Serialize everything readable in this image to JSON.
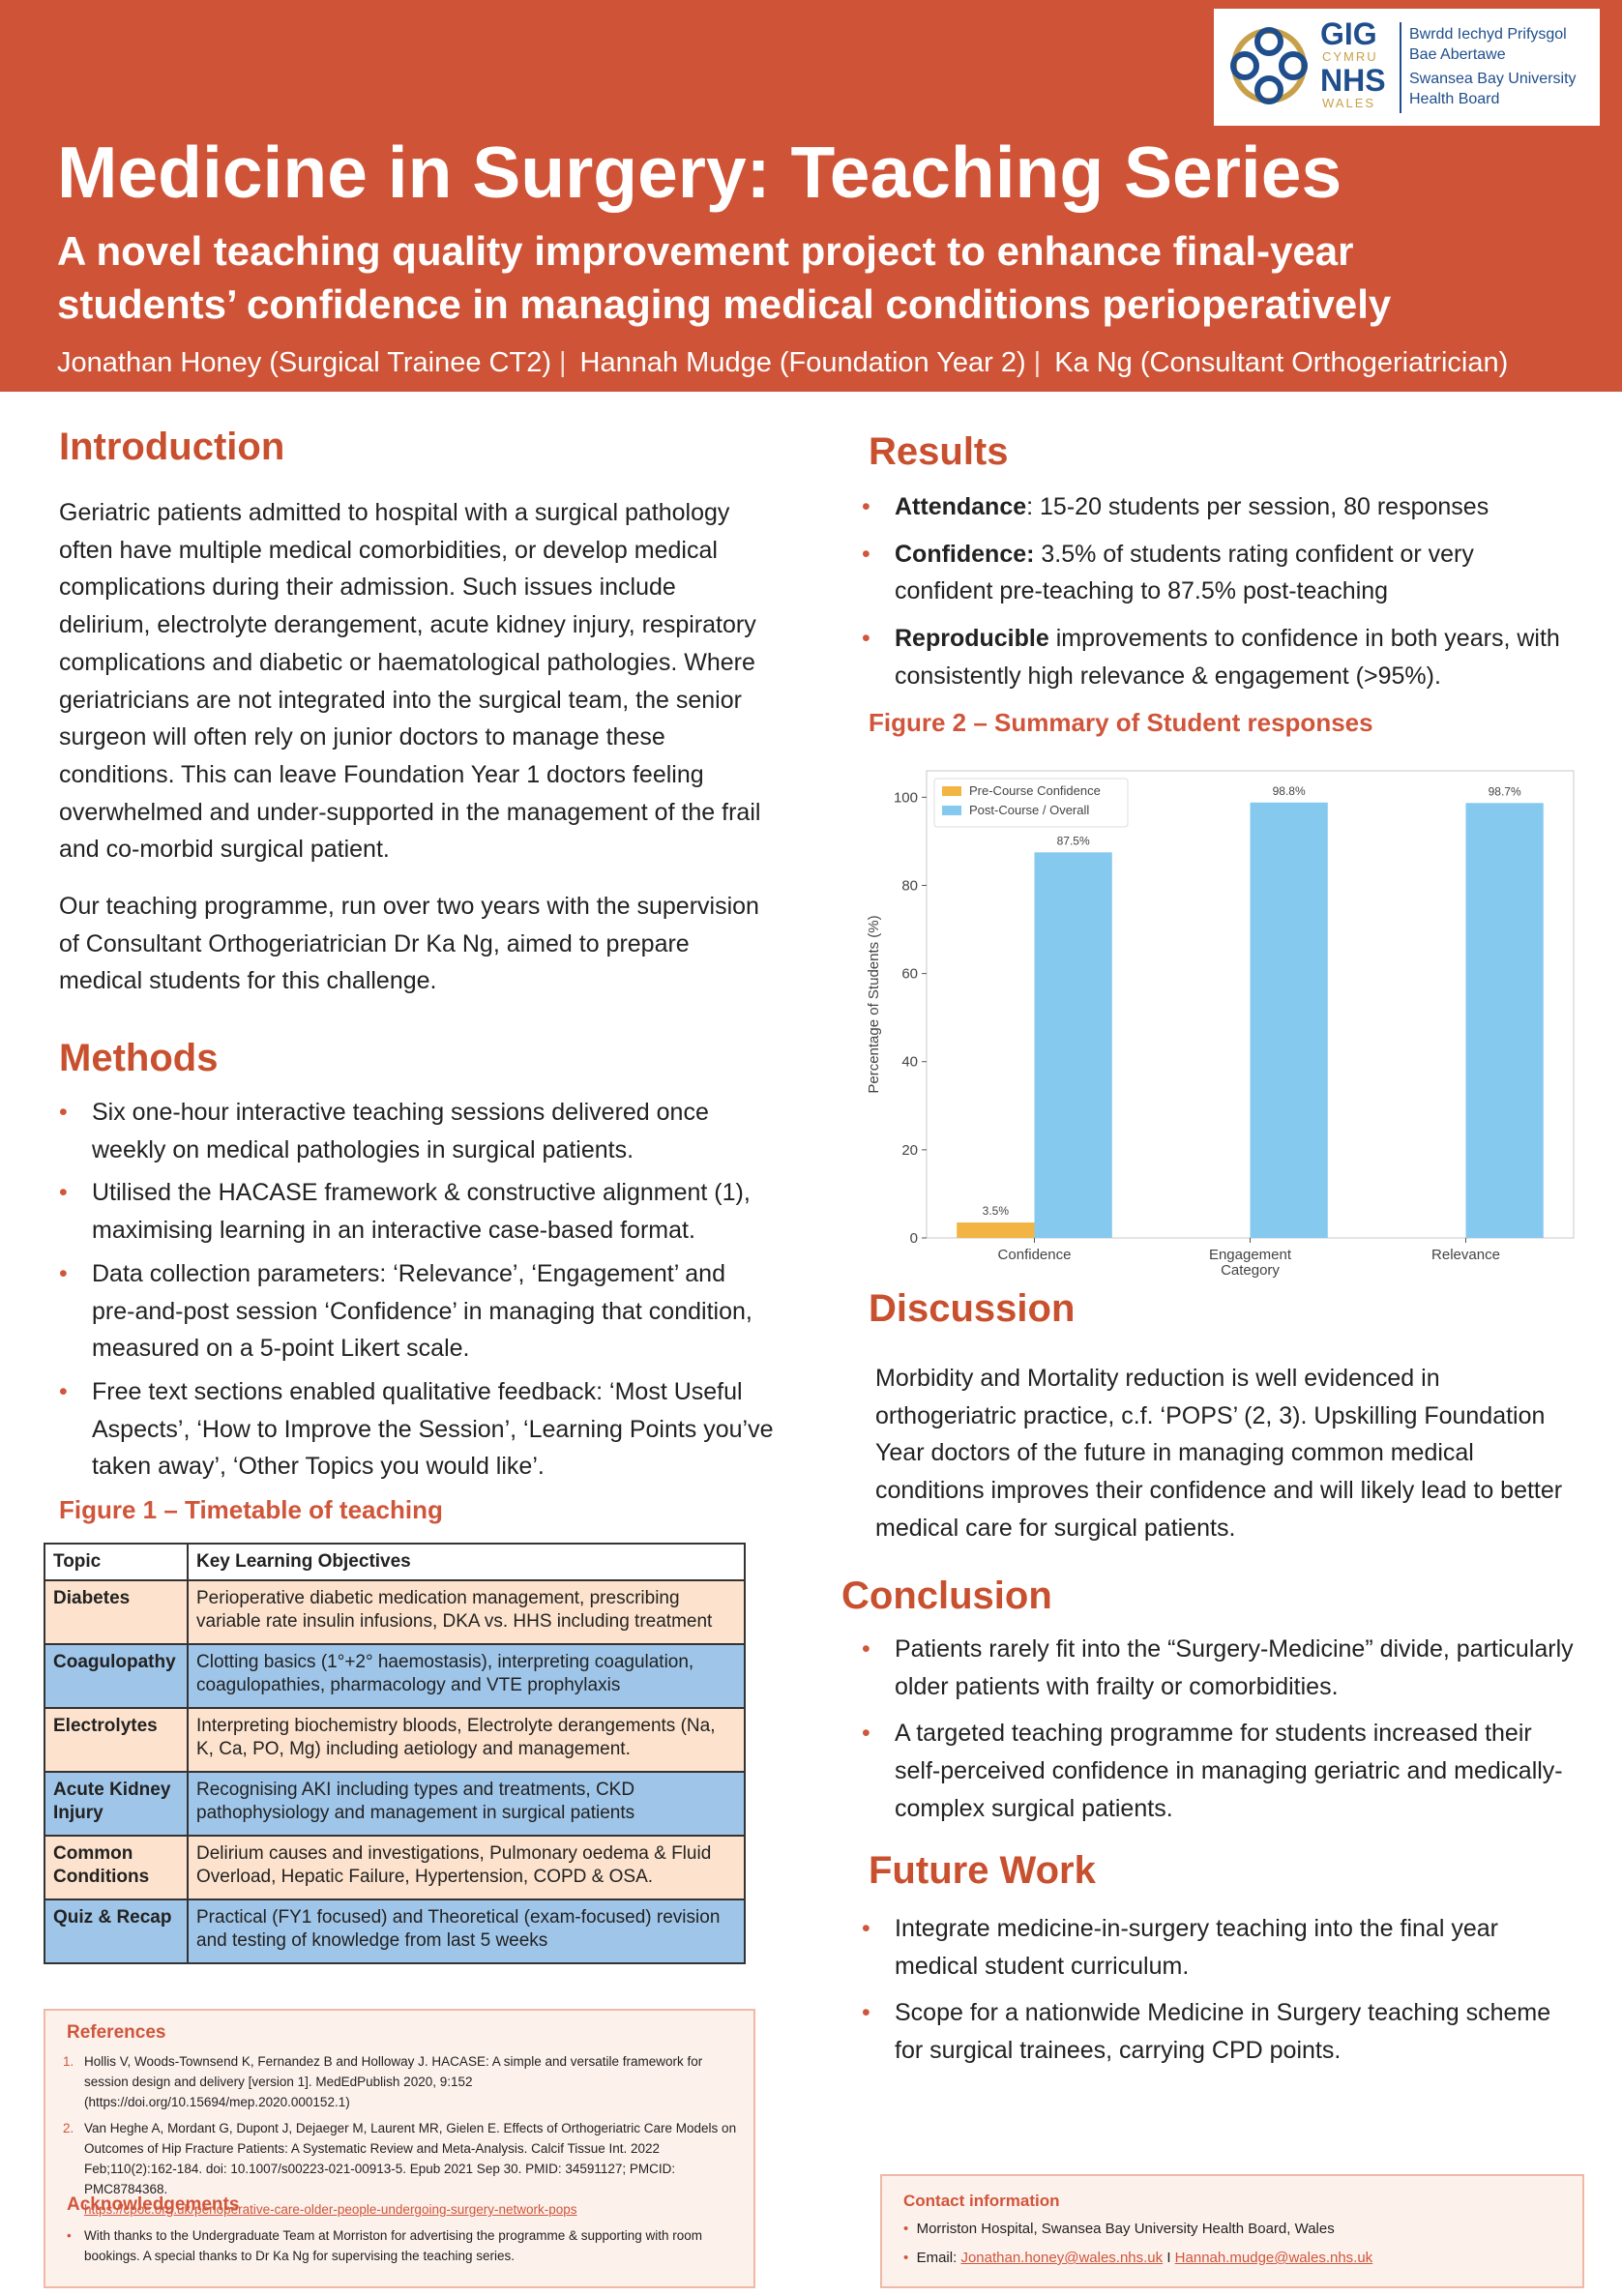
{
  "header": {
    "title": "Medicine in Surgery: Teaching Series",
    "subtitle": "A novel teaching quality improvement project to enhance final-year students’ confidence in managing medical conditions perioperatively",
    "authors": [
      "Jonathan Honey (Surgical Trainee CT2)",
      "Hannah Mudge (Foundation Year 2)",
      "Ka Ng (Consultant Orthogeriatrician)"
    ],
    "separator": "|",
    "logo": {
      "gig": "GIG",
      "cymru": "CYMRU",
      "nhs": "NHS",
      "wales": "WALES",
      "board": [
        "Bwrdd Iechyd Prifysgol",
        "Bae Abertawe",
        "Swansea Bay University",
        "Health Board"
      ]
    }
  },
  "introduction": {
    "heading": "Introduction",
    "paragraphs": [
      "Geriatric patients admitted to hospital with a surgical pathology often have multiple medical comorbidities, or develop medical complications during their admission. Such issues include delirium, electrolyte derangement, acute kidney injury, respiratory complications and diabetic or haematological pathologies. Where geriatricians are not integrated into the surgical team, the senior surgeon will often rely on junior doctors to manage these conditions. This can leave Foundation Year 1 doctors feeling overwhelmed and under-supported in the management of the frail and co-morbid surgical patient.",
      "Our teaching programme, run over two years with the supervision of Consultant Orthogeriatrician Dr Ka Ng, aimed to prepare medical students for this challenge."
    ]
  },
  "methods": {
    "heading": "Methods",
    "items": [
      "Six one-hour interactive teaching sessions delivered once weekly on medical pathologies in surgical patients.",
      "Utilised the HACASE framework & constructive alignment (1), maximising learning in an interactive case-based format.",
      "Data collection parameters: ‘Relevance’, ‘Engagement’ and pre-and-post session ‘Confidence’ in managing that condition, measured on a 5-point Likert scale.",
      "Free text sections enabled qualitative feedback: ‘Most Useful Aspects’, ‘How to Improve the Session’, ‘Learning Points you’ve taken away’, ‘Other Topics you would like’."
    ]
  },
  "figure1": {
    "caption": "Figure 1 – Timetable of teaching",
    "header": [
      "Topic",
      "Key Learning Objectives"
    ],
    "rows": [
      [
        "Diabetes",
        "Perioperative diabetic medication management, prescribing variable rate insulin infusions, DKA vs. HHS including treatment"
      ],
      [
        "Coagulopathy",
        "Clotting basics (1°+2° haemostasis), interpreting coagulation, coagulopathies, pharmacology and VTE prophylaxis"
      ],
      [
        "Electrolytes",
        "Interpreting biochemistry bloods, Electrolyte derangements (Na, K, Ca, PO, Mg) including aetiology and management."
      ],
      [
        "Acute Kidney Injury",
        "Recognising AKI including types and treatments, CKD pathophysiology and management in surgical patients"
      ],
      [
        "Common Conditions",
        "Delirium causes and investigations, Pulmonary oedema & Fluid Overload, Hepatic Failure, Hypertension, COPD & OSA."
      ],
      [
        "Quiz & Recap",
        "Practical (FY1 focused) and Theoretical (exam-focused) revision and testing of knowledge from last 5 weeks"
      ]
    ]
  },
  "references": {
    "heading": "References",
    "items": [
      {
        "number": "1.",
        "text": "Hollis V, Woods-Townsend K, Fernandez B and Holloway J. HACASE: A simple and versatile framework for session design and delivery [version 1]. MedEdPublish 2020, 9:152 (https://doi.org/10.15694/mep.2020.000152.1)"
      },
      {
        "number": "2.",
        "text": "Van Heghe A, Mordant G, Dupont J, Dejaeger M, Laurent MR, Gielen E. Effects of Orthogeriatric Care Models on Outcomes of Hip Fracture Patients: A Systematic Review and Meta-Analysis. Calcif Tissue Int. 2022 Feb;110(2):162-184. doi: 10.1007/s00223-021-00913-5. Epub 2021 Sep 30. PMID: 34591127; PMCID: PMC8784368.",
        "link": "https://cpoc.org.uk/perioperative-care-older-people-undergoing-surgery-network-pops"
      }
    ]
  },
  "acknowledgements": {
    "heading": "Acknowledgements",
    "text": "With thanks to the Undergraduate Team at Morriston for advertising the programme & supporting with room bookings. A special thanks to Dr Ka Ng for supervising the teaching series."
  },
  "results": {
    "heading": "Results",
    "items": [
      {
        "bold": "Attendance",
        "text": ": 15-20 students per session, 80 responses"
      },
      {
        "bold": "Confidence:",
        "text": " 3.5% of students rating confident or very confident pre-teaching to 87.5% post-teaching"
      },
      {
        "bold": "Reproducible",
        "text": " improvements to confidence in both years, with consistently high relevance & engagement (>95%)."
      }
    ]
  },
  "figure2": {
    "caption": "Figure 2 – Summary of Student responses"
  },
  "chart_data": {
    "type": "bar",
    "ylabel": "Percentage of Students (%)",
    "xlabel": "Category",
    "categories": [
      "Confidence",
      "Engagement",
      "Relevance"
    ],
    "series": [
      {
        "name": "Pre-Course Confidence",
        "color": "#f2b544",
        "values": [
          3.5,
          null,
          null
        ],
        "value_labels": [
          "3.5%",
          null,
          null
        ]
      },
      {
        "name": "Post-Course / Overall",
        "color": "#85c9ef",
        "values": [
          87.5,
          98.8,
          98.7
        ],
        "value_labels": [
          "87.5%",
          "98.8%",
          "98.7%"
        ]
      }
    ],
    "ylim": [
      0,
      106
    ],
    "yticks": [
      0,
      20,
      40,
      60,
      80,
      100
    ],
    "legend": "upper left",
    "grid": false
  },
  "discussion": {
    "heading": "Discussion",
    "text": "Morbidity and Mortality reduction is well evidenced in orthogeriatric practice, c.f. ‘POPS’ (2, 3). Upskilling Foundation Year doctors of the future in managing common medical conditions improves their confidence and will likely lead to better medical care for surgical patients."
  },
  "conclusion": {
    "heading": "Conclusion",
    "items": [
      "Patients rarely fit into the “Surgery-Medicine” divide, particularly older patients with frailty or comorbidities.",
      "A targeted teaching programme for students increased their self-perceived confidence in managing geriatric and medically-complex surgical patients."
    ]
  },
  "future_work": {
    "heading": "Future Work",
    "items": [
      "Integrate medicine-in-surgery teaching into the final year medical student curriculum.",
      "Scope for a nationwide Medicine in Surgery teaching scheme for surgical trainees, carrying CPD points."
    ]
  },
  "contact": {
    "heading": "Contact information",
    "address": "Morriston Hospital, Swansea Bay University Health Board, Wales",
    "email_label": "Email:",
    "emails": [
      "Jonathan.honey@wales.nhs.uk",
      "Hannah.mudge@wales.nhs.uk"
    ],
    "email_separator": "I"
  }
}
